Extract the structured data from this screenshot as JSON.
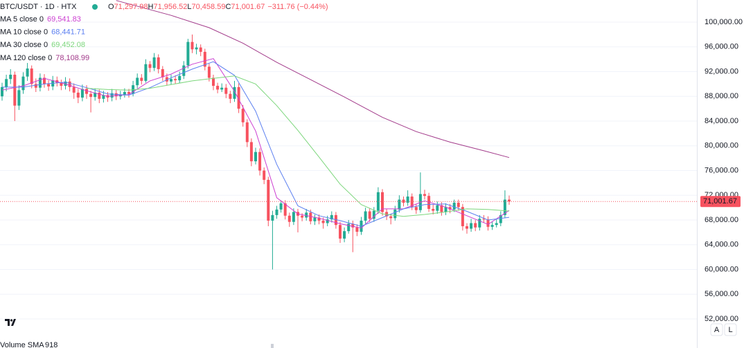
{
  "chart_data": {
    "type": "candlestick",
    "symbol": "BTC/USDT · 1D · HTX",
    "ohlc_legend": [
      {
        "key": "O",
        "value": "71,297.98"
      },
      {
        "key": "H",
        "value": "71,956.52"
      },
      {
        "key": "L",
        "value": "70,458.59"
      },
      {
        "key": "C",
        "value": "71,001.67"
      }
    ],
    "change": "−311.76 (−0.44%)",
    "up_color": "#22ab94",
    "down_color": "#f7525f",
    "candles": [
      [
        88000,
        90200,
        87300,
        89500
      ],
      [
        89500,
        91500,
        88800,
        90800
      ],
      [
        90800,
        92400,
        90000,
        91500
      ],
      [
        91500,
        92000,
        84000,
        86500
      ],
      [
        86500,
        89800,
        85800,
        89000
      ],
      [
        89000,
        91900,
        88400,
        91200
      ],
      [
        91200,
        93400,
        90500,
        92500
      ],
      [
        92500,
        93000,
        89300,
        90000
      ],
      [
        90000,
        90900,
        88700,
        89400
      ],
      [
        89400,
        91700,
        88800,
        91000
      ],
      [
        91000,
        91600,
        89400,
        90000
      ],
      [
        90000,
        90600,
        88900,
        89600
      ],
      [
        89600,
        91300,
        89000,
        90600
      ],
      [
        90600,
        91200,
        89600,
        90200
      ],
      [
        90200,
        90700,
        89000,
        89700
      ],
      [
        89700,
        91100,
        89100,
        90400
      ],
      [
        90400,
        90900,
        88800,
        89500
      ],
      [
        89500,
        90100,
        87600,
        88600
      ],
      [
        88600,
        89200,
        86900,
        87800
      ],
      [
        87800,
        89900,
        87200,
        89200
      ],
      [
        89200,
        89800,
        87600,
        88400
      ],
      [
        88400,
        88900,
        85400,
        87900
      ],
      [
        87900,
        89300,
        87300,
        88600
      ],
      [
        88600,
        89100,
        86900,
        87600
      ],
      [
        87600,
        88900,
        87000,
        88200
      ],
      [
        88200,
        88700,
        87100,
        87800
      ],
      [
        87800,
        89200,
        87200,
        88500
      ],
      [
        88500,
        89000,
        87400,
        88000
      ],
      [
        88000,
        88900,
        87500,
        88300
      ],
      [
        88300,
        89300,
        87800,
        88700
      ],
      [
        88700,
        89200,
        87800,
        88400
      ],
      [
        88400,
        90500,
        88000,
        89800
      ],
      [
        89800,
        91700,
        89300,
        91000
      ],
      [
        91000,
        91600,
        89900,
        90500
      ],
      [
        90500,
        94000,
        90200,
        93200
      ],
      [
        93200,
        93700,
        91900,
        92600
      ],
      [
        92600,
        95000,
        92100,
        94300
      ],
      [
        94300,
        94800,
        91700,
        92400
      ],
      [
        92400,
        92900,
        90500,
        91100
      ],
      [
        91100,
        91700,
        89800,
        90400
      ],
      [
        90400,
        91500,
        89900,
        90800
      ],
      [
        90800,
        91400,
        90000,
        90600
      ],
      [
        90600,
        92000,
        90100,
        91300
      ],
      [
        91300,
        93700,
        90800,
        93000
      ],
      [
        93000,
        97300,
        92500,
        96800
      ],
      [
        96800,
        98000,
        95000,
        95600
      ],
      [
        95600,
        96500,
        94800,
        95900
      ],
      [
        95900,
        96400,
        94500,
        95200
      ],
      [
        95200,
        95700,
        92200,
        92800
      ],
      [
        92800,
        93300,
        90400,
        91000
      ],
      [
        91000,
        91500,
        89000,
        89700
      ],
      [
        89700,
        90200,
        88500,
        89100
      ],
      [
        89100,
        90100,
        88700,
        89400
      ],
      [
        89400,
        90000,
        87700,
        88400
      ],
      [
        88400,
        88900,
        86900,
        87600
      ],
      [
        87600,
        90500,
        87100,
        89500
      ],
      [
        89500,
        90100,
        85300,
        86000
      ],
      [
        86000,
        86600,
        83100,
        83800
      ],
      [
        83800,
        84300,
        79800,
        80600
      ],
      [
        80600,
        81200,
        76700,
        77500
      ],
      [
        77500,
        79700,
        77000,
        79000
      ],
      [
        79000,
        79600,
        75200,
        76000
      ],
      [
        76000,
        76500,
        73800,
        74500
      ],
      [
        74500,
        75000,
        67000,
        67900
      ],
      [
        67900,
        69500,
        60000,
        68800
      ],
      [
        68800,
        70300,
        68200,
        69700
      ],
      [
        69700,
        71200,
        69200,
        70700
      ],
      [
        70700,
        71200,
        68100,
        68700
      ],
      [
        68700,
        69200,
        66900,
        67700
      ],
      [
        67700,
        69900,
        67200,
        69300
      ],
      [
        69300,
        69800,
        66000,
        68700
      ],
      [
        68700,
        69100,
        67800,
        68400
      ],
      [
        68400,
        69800,
        67900,
        69200
      ],
      [
        69200,
        69700,
        67300,
        67800
      ],
      [
        67800,
        68900,
        67200,
        68400
      ],
      [
        68400,
        68900,
        67300,
        67900
      ],
      [
        67900,
        68400,
        66600,
        67500
      ],
      [
        67500,
        68700,
        67000,
        68100
      ],
      [
        68100,
        69400,
        67600,
        68800
      ],
      [
        68800,
        69300,
        66600,
        67200
      ],
      [
        67200,
        67700,
        64300,
        65000
      ],
      [
        65000,
        66800,
        64400,
        66200
      ],
      [
        66200,
        68000,
        65800,
        67400
      ],
      [
        67400,
        67900,
        62800,
        66800
      ],
      [
        66800,
        67300,
        65400,
        66100
      ],
      [
        66100,
        68500,
        65600,
        67900
      ],
      [
        67900,
        70000,
        67400,
        69400
      ],
      [
        69400,
        69900,
        67700,
        68200
      ],
      [
        68200,
        70100,
        67700,
        69500
      ],
      [
        69500,
        73300,
        69000,
        72500
      ],
      [
        72500,
        73000,
        68700,
        69300
      ],
      [
        69300,
        69800,
        68000,
        68600
      ],
      [
        68600,
        69000,
        67300,
        68300
      ],
      [
        68300,
        70300,
        67900,
        69700
      ],
      [
        69700,
        72000,
        69200,
        71300
      ],
      [
        71300,
        71800,
        70200,
        70800
      ],
      [
        70800,
        72800,
        70300,
        71800
      ],
      [
        71800,
        72300,
        69600,
        70100
      ],
      [
        70100,
        70600,
        69000,
        69600
      ],
      [
        69600,
        75700,
        69200,
        72200
      ],
      [
        72200,
        72900,
        71300,
        71900
      ],
      [
        71900,
        72400,
        69300,
        69800
      ],
      [
        69800,
        70500,
        68900,
        69500
      ],
      [
        69500,
        71000,
        69000,
        70400
      ],
      [
        70400,
        70900,
        68700,
        69300
      ],
      [
        69300,
        70700,
        68800,
        70100
      ],
      [
        70100,
        70600,
        69100,
        69700
      ],
      [
        69700,
        71300,
        69300,
        70800
      ],
      [
        70800,
        71300,
        69500,
        70100
      ],
      [
        70100,
        70600,
        66300,
        67000
      ],
      [
        67000,
        67500,
        65800,
        66600
      ],
      [
        66600,
        68200,
        66100,
        67500
      ],
      [
        67500,
        68000,
        66200,
        66800
      ],
      [
        66800,
        68800,
        66300,
        68200
      ],
      [
        68200,
        68800,
        67600,
        68100
      ],
      [
        68100,
        68600,
        66300,
        66900
      ],
      [
        66900,
        67800,
        66400,
        67200
      ],
      [
        67200,
        68100,
        66800,
        67500
      ],
      [
        67500,
        69400,
        67000,
        68800
      ],
      [
        68800,
        72800,
        68300,
        71300
      ],
      [
        71297.98,
        71956.52,
        70458.59,
        71001.67
      ]
    ],
    "series": [
      {
        "name": "MA 5 close 0",
        "legend_value": "69,541.83",
        "color": "#cc3fd1",
        "x": [
          0,
          5,
          10,
          15,
          20,
          25,
          30,
          35,
          40,
          45,
          50,
          55,
          60,
          65,
          70,
          75,
          80,
          85,
          90,
          95,
          100,
          105,
          110,
          115,
          120
        ],
        "values": [
          89000,
          89700,
          90900,
          90000,
          88900,
          88000,
          88300,
          90500,
          91600,
          93200,
          94100,
          88800,
          82400,
          71600,
          69000,
          68300,
          67400,
          66700,
          69800,
          69800,
          71100,
          70100,
          68700,
          67300,
          69541.83
        ]
      },
      {
        "name": "MA 10 close 0",
        "legend_value": "68,441.71",
        "color": "#5b7ff0",
        "x": [
          0,
          5,
          10,
          15,
          20,
          25,
          30,
          35,
          40,
          45,
          50,
          55,
          60,
          65,
          70,
          75,
          80,
          85,
          90,
          95,
          100,
          105,
          110,
          115,
          120
        ],
        "values": [
          89500,
          89500,
          90000,
          90300,
          89400,
          88400,
          88200,
          89400,
          91000,
          92400,
          93600,
          91400,
          85600,
          77000,
          70300,
          68700,
          67900,
          67000,
          68400,
          69800,
          70500,
          70600,
          69400,
          68000,
          68441.71
        ]
      },
      {
        "name": "MA 30 close 0",
        "legend_value": "69,452.08",
        "color": "#7cd67c",
        "x": [
          20,
          25,
          30,
          35,
          40,
          45,
          50,
          55,
          60,
          65,
          70,
          75,
          80,
          85,
          90,
          95,
          100,
          105,
          110,
          115,
          120
        ],
        "values": [
          89300,
          89100,
          89000,
          89300,
          89900,
          90500,
          90900,
          91300,
          90000,
          86500,
          82500,
          78200,
          73800,
          70500,
          69000,
          68600,
          68900,
          69300,
          69800,
          69700,
          69452.08
        ]
      },
      {
        "name": "MA 120 close 0",
        "legend_value": "78,108.99",
        "color": "#a23a8a",
        "x": [
          27,
          40,
          49,
          57,
          65,
          73,
          81,
          90,
          98,
          106,
          114,
          120
        ],
        "values": [
          103500,
          101100,
          99100,
          96600,
          93500,
          90700,
          87900,
          84600,
          82300,
          80600,
          79200,
          78108.99
        ]
      }
    ],
    "last_price": {
      "value": 71001.67,
      "label": "71,001.67"
    },
    "ylim": [
      48760,
      103580
    ],
    "yticks": [
      {
        "value": 52000,
        "label": "52,000.00"
      },
      {
        "value": 56000,
        "label": "56,000.00"
      },
      {
        "value": 60000,
        "label": "60,000.00"
      },
      {
        "value": 64000,
        "label": "64,000.00"
      },
      {
        "value": 68000,
        "label": "68,000.00"
      },
      {
        "value": 72000,
        "label": "72,000.00"
      },
      {
        "value": 76000,
        "label": "76,000.00"
      },
      {
        "value": 80000,
        "label": "80,000.00"
      },
      {
        "value": 84000,
        "label": "84,000.00"
      },
      {
        "value": 88000,
        "label": "88,000.00"
      },
      {
        "value": 92000,
        "label": "92,000.00"
      },
      {
        "value": 96000,
        "label": "96,000.00"
      },
      {
        "value": 100000,
        "label": "100,000.00"
      }
    ],
    "grid": true,
    "volume_label": "Volume SMA",
    "volume_value": "918",
    "buttons": [
      "A",
      "L"
    ]
  }
}
